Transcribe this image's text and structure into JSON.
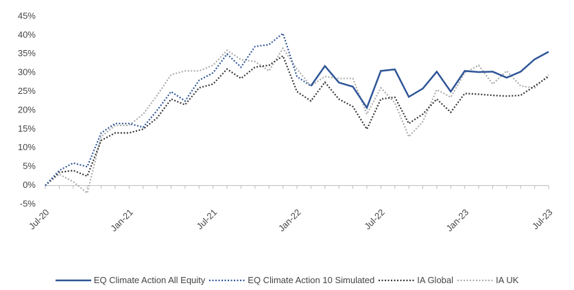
{
  "chart_data": {
    "type": "line",
    "categories": [
      "Jul-20",
      null,
      null,
      null,
      null,
      null,
      "Jan-21",
      null,
      null,
      null,
      null,
      null,
      "Jul-21",
      null,
      null,
      null,
      null,
      null,
      "Jan-22",
      null,
      null,
      null,
      null,
      null,
      "Jul-22",
      null,
      null,
      null,
      null,
      null,
      "Jan-23",
      null,
      null,
      null,
      null,
      null,
      "Jul-23"
    ],
    "ylim": [
      -5,
      45
    ],
    "yticks": [
      {
        "value": -5,
        "label": "-5%"
      },
      {
        "value": 0,
        "label": "0%"
      },
      {
        "value": 5,
        "label": "5%"
      },
      {
        "value": 10,
        "label": "10%"
      },
      {
        "value": 15,
        "label": "15%"
      },
      {
        "value": 20,
        "label": "20%"
      },
      {
        "value": 25,
        "label": "25%"
      },
      {
        "value": 30,
        "label": "30%"
      },
      {
        "value": 35,
        "label": "35%"
      },
      {
        "value": 40,
        "label": "40%"
      },
      {
        "value": 45,
        "label": "45%"
      }
    ],
    "series": [
      {
        "name": "EQ Climate Action All Equity",
        "color": "#2e5597",
        "style": "solid",
        "values": [
          null,
          null,
          null,
          null,
          null,
          null,
          null,
          null,
          null,
          null,
          null,
          null,
          null,
          null,
          null,
          null,
          null,
          null,
          null,
          26.5,
          31.8,
          27.4,
          26.3,
          20.7,
          30.5,
          30.9,
          23.6,
          25.8,
          30.3,
          25,
          30.5,
          30.2,
          30.3,
          28.7,
          30.3,
          33.6,
          35.6
        ]
      },
      {
        "name": "EQ Climate Action 10 Simulated",
        "color": "#2e5597",
        "style": "dotted",
        "values": [
          0,
          4,
          6,
          5,
          14,
          16.5,
          16.5,
          15.5,
          20,
          25,
          22.5,
          28,
          30,
          35,
          31.5,
          37,
          37.5,
          40.5,
          29,
          26.5,
          null,
          null,
          null,
          null,
          null,
          null,
          null,
          null,
          null,
          null,
          null,
          null,
          null,
          null,
          null,
          null,
          null
        ]
      },
      {
        "name": "IA Global",
        "color": "#333333",
        "style": "dotted",
        "values": [
          0,
          3.5,
          4,
          2.5,
          12,
          14,
          14,
          15,
          18,
          23,
          21.5,
          26,
          27,
          31,
          28.5,
          31.5,
          32,
          34.5,
          25,
          22.5,
          27.5,
          23,
          21,
          15,
          23,
          23.5,
          16.5,
          19,
          23,
          19.5,
          24.5,
          24.3,
          24,
          23.8,
          24,
          26.5,
          29
        ]
      },
      {
        "name": "IA UK",
        "color": "#aaaaaa",
        "style": "dotted",
        "values": [
          0,
          3,
          1,
          -2,
          13,
          16,
          16,
          19,
          24,
          29.5,
          30.5,
          30.5,
          32,
          36,
          33.5,
          33,
          30.5,
          36.5,
          31,
          26.5,
          29,
          28.5,
          28.5,
          19,
          26,
          22,
          13,
          17,
          25.5,
          23.5,
          30,
          32,
          27,
          30.5,
          26.5,
          26,
          29.5
        ]
      }
    ]
  }
}
